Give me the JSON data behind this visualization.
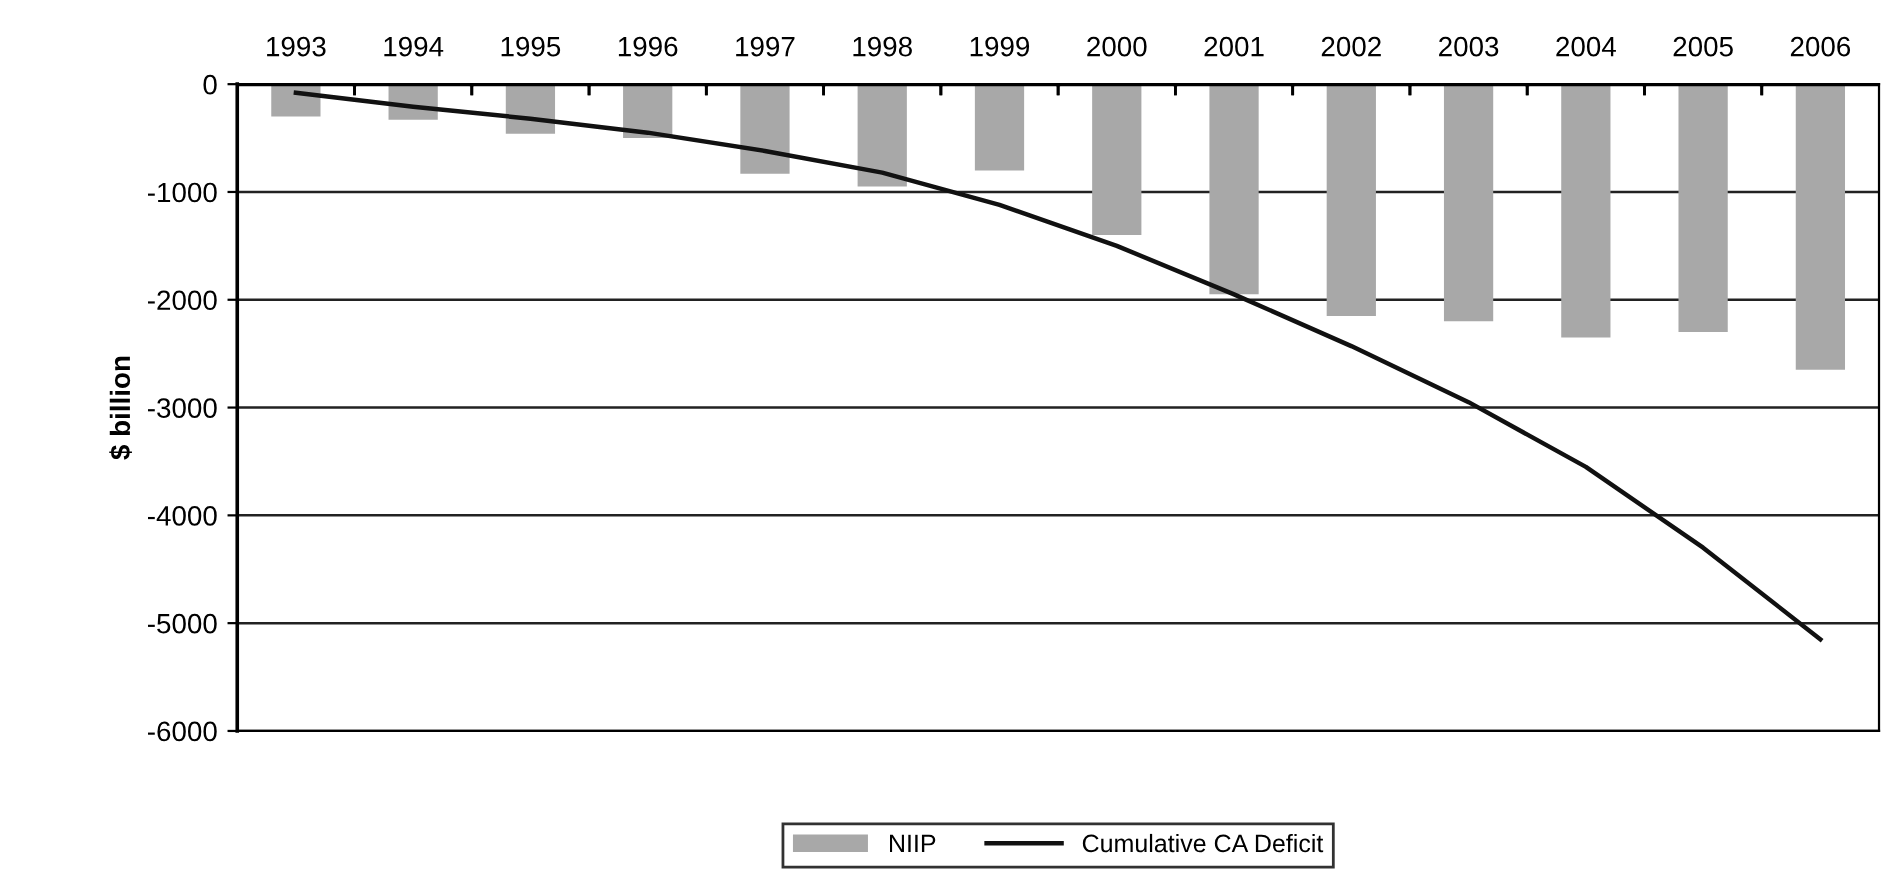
{
  "chart_data": {
    "type": "bar",
    "ylabel": "$ billion",
    "categories": [
      "1993",
      "1994",
      "1995",
      "1996",
      "1997",
      "1998",
      "1999",
      "2000",
      "2001",
      "2002",
      "2003",
      "2004",
      "2005",
      "2006"
    ],
    "series": [
      {
        "name": "NIIP",
        "color": "#a8a8a8",
        "values": [
          -300,
          -330,
          -460,
          -500,
          -830,
          -950,
          -800,
          -1400,
          -1950,
          -2150,
          -2200,
          -2350,
          -2300,
          -2650
        ]
      },
      {
        "name": "Cumulative CA Deficit",
        "type": "line",
        "color": "#111111",
        "values": [
          -80,
          -210,
          -320,
          -450,
          -620,
          -820,
          -1120,
          -1500,
          -1950,
          -2430,
          -2950,
          -3550,
          -4300,
          -5150
        ]
      }
    ],
    "ylim": [
      -6000,
      0
    ],
    "yticks": [
      -6000,
      -5000,
      -4000,
      -3000,
      -2000,
      -1000,
      0
    ],
    "grid": "y",
    "legend": "bottom",
    "marker": "none",
    "line_style": "solid"
  }
}
